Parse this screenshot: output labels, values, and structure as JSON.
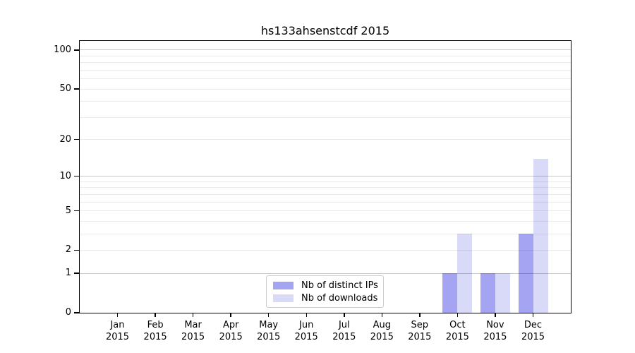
{
  "chart_data": {
    "type": "bar",
    "title": "hs133ahsenstcdf 2015",
    "xlabel": "",
    "ylabel": "",
    "yscale": "log10(1+y)",
    "ylim": [
      0,
      117.5
    ],
    "yticks": [
      0,
      1,
      2,
      5,
      10,
      20,
      50,
      100
    ],
    "major_gridlines": [
      1,
      10,
      100
    ],
    "minor_gridlines": [
      2,
      3,
      4,
      5,
      6,
      7,
      8,
      9,
      20,
      30,
      40,
      50,
      60,
      70,
      80,
      90
    ],
    "grid": true,
    "legend_position": "lower center",
    "categories": [
      {
        "month": "Jan",
        "year": "2015"
      },
      {
        "month": "Feb",
        "year": "2015"
      },
      {
        "month": "Mar",
        "year": "2015"
      },
      {
        "month": "Apr",
        "year": "2015"
      },
      {
        "month": "May",
        "year": "2015"
      },
      {
        "month": "Jun",
        "year": "2015"
      },
      {
        "month": "Jul",
        "year": "2015"
      },
      {
        "month": "Aug",
        "year": "2015"
      },
      {
        "month": "Sep",
        "year": "2015"
      },
      {
        "month": "Oct",
        "year": "2015"
      },
      {
        "month": "Nov",
        "year": "2015"
      },
      {
        "month": "Dec",
        "year": "2015"
      }
    ],
    "series": [
      {
        "name": "Nb of distinct IPs",
        "color": "#a4a4f2",
        "values": [
          0,
          0,
          0,
          0,
          0,
          0,
          0,
          0,
          0,
          1,
          1,
          3
        ]
      },
      {
        "name": "Nb of downloads",
        "color": "#d9d9f8",
        "values": [
          0,
          0,
          0,
          0,
          0,
          0,
          0,
          0,
          0,
          3,
          1,
          14
        ]
      }
    ]
  },
  "colors": {
    "axis": "#000000",
    "major_grid": "rgba(0,0,0,0.22)",
    "minor_grid": "rgba(0,0,0,0.08)",
    "legend_border": "#cccccc",
    "background": "#ffffff"
  }
}
